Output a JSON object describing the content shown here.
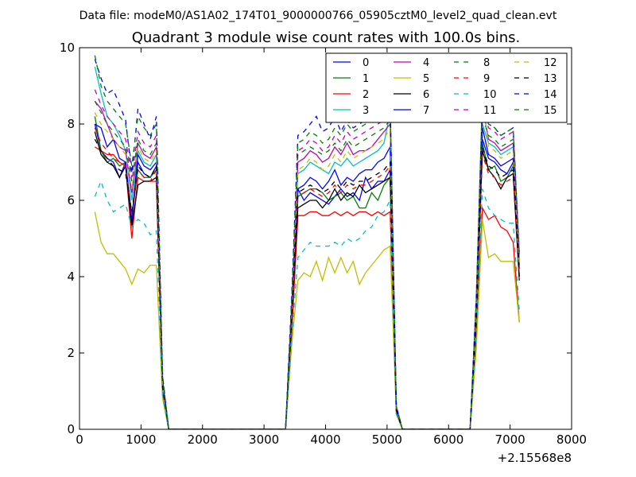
{
  "figure": {
    "suptitle": "Data file: modeM0/AS1A02_174T01_9000000766_05905cztM0_level2_quad_clean.evt",
    "title": "Quadrant 3 module wise count rates with 100.0s bins.",
    "x_offset_label": "+2.15568e8"
  },
  "chart_data": {
    "type": "line",
    "title": "Quadrant 3 module wise count rates with 100.0s bins.",
    "xlabel": "",
    "ylabel": "",
    "xlim": [
      0,
      8000
    ],
    "ylim": [
      0,
      10
    ],
    "xticks": [
      0,
      1000,
      2000,
      3000,
      4000,
      5000,
      6000,
      7000,
      8000
    ],
    "yticks": [
      0,
      2,
      4,
      6,
      8,
      10
    ],
    "grid": false,
    "legend_position": "top-right",
    "legend_columns": 4,
    "x": [
      250,
      350,
      450,
      550,
      650,
      750,
      850,
      950,
      1050,
      1150,
      1250,
      1350,
      1450,
      1550,
      3350,
      3450,
      3550,
      3650,
      3750,
      3850,
      3950,
      4050,
      4150,
      4250,
      4350,
      4450,
      4550,
      4650,
      4750,
      4850,
      4950,
      5050,
      5150,
      5250,
      6350,
      6450,
      6550,
      6650,
      6750,
      6850,
      6950,
      7050,
      7150
    ],
    "series": [
      {
        "name": "0",
        "color": "#0000ff",
        "dash": "solid",
        "values": [
          8.0,
          7.3,
          7.1,
          7.0,
          6.6,
          7.0,
          5.4,
          7.0,
          6.7,
          6.6,
          6.9,
          1.2,
          0.0,
          0.0,
          0.0,
          3.0,
          6.3,
          6.0,
          6.2,
          6.1,
          6.0,
          5.9,
          6.1,
          6.3,
          6.1,
          6.2,
          6.0,
          6.6,
          6.3,
          6.5,
          6.5,
          6.8,
          0.5,
          0.0,
          0.0,
          3.0,
          7.6,
          7.1,
          7.0,
          6.8,
          6.7,
          7.0,
          4.2
        ]
      },
      {
        "name": "1",
        "color": "#008000",
        "dash": "solid",
        "values": [
          8.2,
          7.3,
          7.0,
          7.1,
          6.9,
          7.0,
          5.6,
          6.8,
          6.6,
          6.6,
          6.8,
          1.2,
          0.0,
          0.0,
          0.0,
          3.0,
          6.1,
          6.2,
          6.3,
          6.3,
          6.2,
          6.0,
          6.1,
          6.2,
          6.0,
          6.1,
          5.8,
          5.8,
          6.2,
          6.0,
          6.4,
          6.6,
          0.5,
          0.0,
          0.0,
          2.9,
          7.5,
          6.8,
          6.9,
          6.5,
          6.6,
          6.9,
          4.0
        ]
      },
      {
        "name": "2",
        "color": "#ff0000",
        "dash": "solid",
        "values": [
          7.4,
          7.3,
          7.2,
          7.2,
          7.0,
          6.9,
          5.0,
          6.6,
          6.5,
          6.5,
          6.5,
          1.0,
          0.0,
          0.0,
          0.0,
          2.5,
          5.6,
          5.6,
          5.7,
          5.7,
          5.6,
          5.6,
          5.7,
          5.6,
          5.7,
          5.6,
          5.7,
          5.7,
          5.6,
          5.7,
          5.6,
          5.7,
          0.4,
          0.0,
          0.0,
          2.5,
          5.8,
          5.5,
          5.6,
          5.3,
          5.2,
          4.9,
          2.8
        ]
      },
      {
        "name": "3",
        "color": "#00bfbf",
        "dash": "solid",
        "values": [
          9.5,
          8.8,
          8.2,
          8.0,
          7.7,
          7.3,
          6.0,
          7.3,
          7.0,
          6.9,
          7.2,
          1.3,
          0.0,
          0.0,
          0.0,
          3.2,
          6.7,
          6.8,
          7.0,
          6.9,
          6.8,
          6.7,
          7.0,
          6.9,
          7.1,
          6.9,
          7.0,
          7.1,
          7.2,
          7.3,
          7.5,
          8.3,
          0.6,
          0.0,
          0.0,
          3.2,
          8.0,
          7.5,
          7.4,
          7.2,
          7.3,
          7.4,
          4.4
        ]
      },
      {
        "name": "4",
        "color": "#bf00bf",
        "dash": "solid",
        "values": [
          8.6,
          8.4,
          8.0,
          7.6,
          7.4,
          7.3,
          6.2,
          7.5,
          7.2,
          7.1,
          7.4,
          1.3,
          0.0,
          0.0,
          0.0,
          3.2,
          7.0,
          7.1,
          7.3,
          7.2,
          7.0,
          7.1,
          7.4,
          7.2,
          7.5,
          7.2,
          7.3,
          7.3,
          7.4,
          7.6,
          7.8,
          8.0,
          0.6,
          0.0,
          0.0,
          3.3,
          8.5,
          7.6,
          7.5,
          7.3,
          7.4,
          7.5,
          4.4
        ]
      },
      {
        "name": "5",
        "color": "#bfbf00",
        "dash": "solid",
        "values": [
          5.7,
          4.9,
          4.6,
          4.6,
          4.4,
          4.2,
          3.8,
          4.2,
          4.1,
          4.3,
          4.3,
          0.8,
          0.0,
          0.0,
          0.0,
          2.2,
          3.9,
          4.1,
          4.0,
          4.4,
          3.9,
          4.5,
          4.1,
          4.5,
          4.1,
          4.4,
          3.8,
          4.1,
          4.3,
          4.5,
          4.7,
          4.8,
          0.4,
          0.0,
          0.0,
          2.1,
          5.5,
          4.5,
          4.6,
          4.4,
          4.4,
          4.4,
          2.8
        ]
      },
      {
        "name": "6",
        "color": "#000000",
        "dash": "solid",
        "values": [
          7.8,
          7.2,
          7.0,
          6.9,
          6.6,
          6.9,
          5.3,
          6.4,
          6.5,
          6.5,
          6.6,
          1.2,
          0.0,
          0.0,
          0.0,
          2.9,
          5.8,
          5.9,
          6.0,
          6.0,
          5.8,
          6.0,
          6.3,
          6.0,
          6.2,
          6.1,
          6.4,
          6.2,
          6.3,
          6.4,
          6.5,
          6.6,
          0.5,
          0.0,
          0.0,
          2.8,
          7.3,
          6.8,
          6.6,
          6.3,
          6.6,
          6.7,
          3.9
        ]
      },
      {
        "name": "7",
        "color": "#0000ff",
        "dash": "solid",
        "values": [
          8.0,
          7.9,
          7.4,
          7.6,
          7.1,
          7.0,
          5.5,
          7.2,
          6.9,
          6.8,
          7.0,
          1.2,
          0.0,
          0.0,
          0.0,
          3.0,
          6.3,
          6.4,
          6.6,
          6.5,
          6.3,
          6.5,
          6.8,
          6.4,
          6.6,
          6.5,
          6.7,
          6.8,
          6.8,
          7.0,
          7.1,
          7.4,
          0.5,
          0.0,
          0.0,
          3.0,
          7.9,
          7.2,
          7.1,
          6.9,
          7.0,
          7.1,
          4.3
        ]
      },
      {
        "name": "8",
        "color": "#008000",
        "dash": "dashed",
        "values": [
          8.6,
          8.3,
          8.0,
          7.8,
          7.6,
          7.4,
          6.5,
          7.6,
          7.3,
          7.2,
          7.5,
          1.3,
          0.0,
          0.0,
          0.0,
          3.3,
          7.2,
          7.3,
          7.4,
          7.3,
          7.2,
          7.3,
          7.5,
          7.3,
          7.6,
          7.4,
          7.5,
          7.6,
          7.7,
          7.8,
          7.9,
          8.1,
          0.6,
          0.0,
          0.0,
          3.3,
          8.2,
          7.7,
          7.6,
          7.4,
          7.5,
          7.6,
          4.5
        ]
      },
      {
        "name": "9",
        "color": "#ff0000",
        "dash": "dashed",
        "values": [
          7.9,
          7.5,
          7.3,
          7.1,
          7.0,
          6.9,
          5.6,
          6.8,
          6.6,
          6.5,
          6.8,
          1.1,
          0.0,
          0.0,
          0.0,
          2.8,
          6.1,
          6.2,
          6.3,
          6.2,
          6.1,
          6.2,
          6.4,
          6.2,
          6.4,
          6.3,
          6.4,
          6.4,
          6.5,
          6.6,
          6.7,
          6.9,
          0.5,
          0.0,
          0.0,
          2.9,
          7.2,
          6.7,
          6.6,
          6.4,
          6.5,
          6.6,
          3.9
        ]
      },
      {
        "name": "10",
        "color": "#00bfbf",
        "dash": "dashed",
        "values": [
          6.1,
          6.5,
          6.0,
          5.7,
          5.8,
          5.9,
          5.3,
          5.5,
          5.4,
          5.1,
          5.2,
          0.9,
          0.0,
          0.0,
          0.0,
          2.4,
          4.5,
          4.7,
          4.9,
          4.8,
          4.8,
          4.8,
          4.9,
          4.8,
          5.0,
          4.9,
          5.0,
          5.2,
          5.3,
          5.6,
          5.7,
          6.0,
          0.4,
          0.0,
          0.0,
          2.5,
          6.3,
          5.8,
          5.6,
          5.5,
          5.4,
          5.4,
          3.1
        ]
      },
      {
        "name": "11",
        "color": "#bf00bf",
        "dash": "dashed",
        "values": [
          8.9,
          8.5,
          8.2,
          8.0,
          7.8,
          7.6,
          6.6,
          7.8,
          7.5,
          7.4,
          7.7,
          1.3,
          0.0,
          0.0,
          0.0,
          3.3,
          7.3,
          7.4,
          7.6,
          7.5,
          7.3,
          7.4,
          7.7,
          7.5,
          7.8,
          7.6,
          7.7,
          7.8,
          7.9,
          8.0,
          8.1,
          8.4,
          0.6,
          0.0,
          0.0,
          3.4,
          8.6,
          7.9,
          7.8,
          7.6,
          7.7,
          7.8,
          4.6
        ]
      },
      {
        "name": "12",
        "color": "#bfbf00",
        "dash": "dashed",
        "values": [
          8.3,
          8.0,
          7.8,
          7.6,
          7.4,
          7.2,
          6.3,
          7.4,
          7.1,
          7.0,
          7.3,
          1.2,
          0.0,
          0.0,
          0.0,
          3.1,
          6.8,
          6.9,
          7.1,
          7.0,
          6.8,
          6.9,
          7.2,
          7.0,
          7.3,
          7.1,
          7.2,
          7.3,
          7.4,
          7.5,
          7.6,
          7.9,
          0.6,
          0.0,
          0.0,
          3.2,
          8.9,
          7.4,
          7.3,
          7.1,
          7.2,
          7.3,
          4.3
        ]
      },
      {
        "name": "13",
        "color": "#000000",
        "dash": "dashed",
        "values": [
          7.6,
          7.3,
          7.1,
          6.9,
          6.8,
          6.7,
          5.7,
          6.9,
          6.7,
          6.6,
          6.9,
          1.1,
          0.0,
          0.0,
          0.0,
          2.9,
          6.2,
          6.3,
          6.4,
          6.3,
          6.2,
          6.3,
          6.5,
          6.3,
          6.5,
          6.4,
          6.5,
          6.5,
          6.6,
          6.7,
          6.8,
          7.0,
          0.5,
          0.0,
          0.0,
          2.9,
          7.4,
          6.9,
          6.8,
          6.6,
          6.7,
          6.8,
          4.0
        ]
      },
      {
        "name": "14",
        "color": "#0000ff",
        "dash": "dashed",
        "values": [
          9.7,
          9.2,
          8.8,
          8.9,
          8.5,
          8.1,
          6.7,
          8.4,
          8.0,
          7.6,
          8.2,
          1.4,
          0.0,
          0.0,
          0.0,
          3.5,
          7.7,
          7.8,
          8.0,
          8.2,
          7.8,
          7.9,
          8.2,
          7.8,
          8.1,
          7.9,
          8.0,
          8.1,
          8.2,
          8.3,
          8.4,
          8.7,
          0.6,
          0.0,
          0.0,
          3.5,
          8.6,
          8.0,
          7.9,
          7.7,
          7.8,
          7.9,
          4.6
        ]
      },
      {
        "name": "15",
        "color": "#008000",
        "dash": "dashed",
        "values": [
          9.8,
          9.0,
          8.6,
          8.4,
          8.2,
          8.0,
          6.9,
          8.2,
          7.9,
          7.7,
          8.0,
          1.4,
          0.0,
          0.0,
          0.0,
          3.4,
          7.5,
          7.6,
          7.8,
          7.7,
          7.5,
          7.6,
          7.9,
          7.7,
          8.0,
          7.8,
          7.9,
          8.0,
          8.1,
          8.2,
          8.3,
          8.6,
          0.6,
          0.0,
          0.0,
          3.4,
          8.7,
          8.0,
          7.9,
          7.7,
          7.8,
          7.9,
          4.6
        ]
      }
    ]
  }
}
